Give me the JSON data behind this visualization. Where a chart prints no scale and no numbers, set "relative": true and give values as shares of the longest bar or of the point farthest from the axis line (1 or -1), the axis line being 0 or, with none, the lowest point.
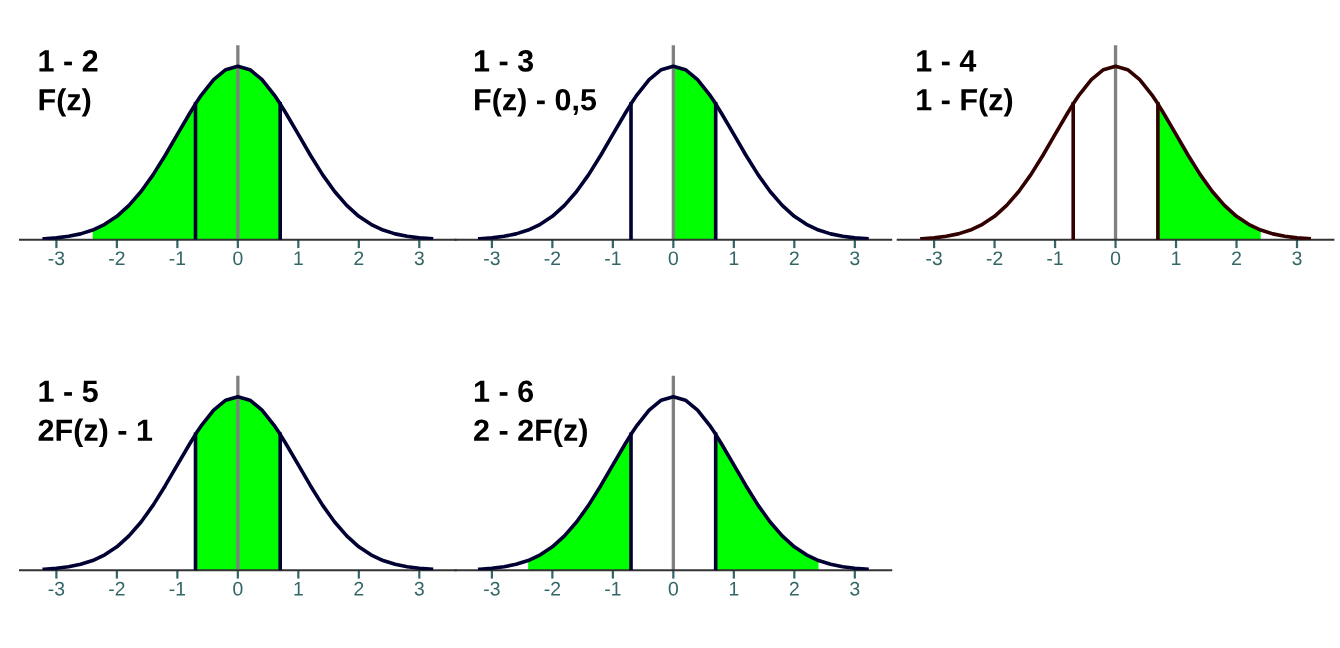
{
  "chart_data": [
    {
      "type": "line",
      "title": "1 - 2",
      "subtitle": "F(z)",
      "relative": true,
      "xlim": [
        -3.6,
        3.6
      ],
      "xticks": [
        -3,
        -2,
        -1,
        0,
        1,
        2,
        3
      ],
      "grid": false,
      "legend": false,
      "ref_lines": [
        {
          "axis": "x",
          "value": 0,
          "color": "#808080"
        }
      ],
      "series": [
        {
          "type": "area",
          "color": "#00ff00",
          "x": [
            -2.4,
            -2.2,
            -2.0,
            -1.8,
            -1.6,
            -1.4,
            -1.2,
            -1.0,
            -0.8,
            -0.7,
            -0.6,
            -0.4,
            -0.2,
            0,
            0.2,
            0.4,
            0.6,
            0.7
          ],
          "values": [
            0.056,
            0.089,
            0.135,
            0.198,
            0.278,
            0.375,
            0.487,
            0.607,
            0.726,
            0.783,
            0.835,
            0.923,
            0.98,
            1,
            0.98,
            0.923,
            0.835,
            0.783
          ]
        },
        {
          "type": "line",
          "color": "#000033",
          "x": [
            -3.2,
            -3.0,
            -2.8,
            -2.6,
            -2.4,
            -2.2,
            -2.0,
            -1.8,
            -1.6,
            -1.4,
            -1.2,
            -1.0,
            -0.8,
            -0.7,
            -0.6,
            -0.4,
            -0.2,
            0,
            0.2,
            0.4,
            0.6,
            0.7,
            0.8,
            1.0,
            1.2,
            1.4,
            1.6,
            1.8,
            2.0,
            2.2,
            2.4,
            2.6,
            2.8,
            3.0,
            3.2
          ],
          "values": [
            0.006,
            0.011,
            0.02,
            0.034,
            0.056,
            0.089,
            0.135,
            0.198,
            0.278,
            0.375,
            0.487,
            0.607,
            0.726,
            0.783,
            0.835,
            0.923,
            0.98,
            1,
            0.98,
            0.923,
            0.835,
            0.783,
            0.726,
            0.607,
            0.487,
            0.375,
            0.278,
            0.198,
            0.135,
            0.089,
            0.056,
            0.034,
            0.02,
            0.011,
            0.006
          ]
        },
        {
          "type": "line",
          "color": "#000033",
          "x": [
            -0.7,
            -0.7
          ],
          "values": [
            0,
            0.783
          ]
        },
        {
          "type": "line",
          "color": "#000033",
          "x": [
            0.7,
            0.7
          ],
          "values": [
            0,
            0.783
          ]
        }
      ]
    },
    {
      "type": "line",
      "title": "1 - 3",
      "subtitle": "F(z) - 0,5",
      "relative": true,
      "xlim": [
        -3.6,
        3.6
      ],
      "xticks": [
        -3,
        -2,
        -1,
        0,
        1,
        2,
        3
      ],
      "grid": false,
      "legend": false,
      "ref_lines": [
        {
          "axis": "x",
          "value": 0,
          "color": "#808080"
        }
      ],
      "series": [
        {
          "type": "area",
          "color": "#00ff00",
          "x": [
            0,
            0.2,
            0.4,
            0.6,
            0.7
          ],
          "values": [
            1,
            0.98,
            0.923,
            0.835,
            0.783
          ]
        },
        {
          "type": "line",
          "color": "#000033",
          "x": [
            -3.2,
            -3.0,
            -2.8,
            -2.6,
            -2.4,
            -2.2,
            -2.0,
            -1.8,
            -1.6,
            -1.4,
            -1.2,
            -1.0,
            -0.8,
            -0.7,
            -0.6,
            -0.4,
            -0.2,
            0,
            0.2,
            0.4,
            0.6,
            0.7,
            0.8,
            1.0,
            1.2,
            1.4,
            1.6,
            1.8,
            2.0,
            2.2,
            2.4,
            2.6,
            2.8,
            3.0,
            3.2
          ],
          "values": [
            0.006,
            0.011,
            0.02,
            0.034,
            0.056,
            0.089,
            0.135,
            0.198,
            0.278,
            0.375,
            0.487,
            0.607,
            0.726,
            0.783,
            0.835,
            0.923,
            0.98,
            1,
            0.98,
            0.923,
            0.835,
            0.783,
            0.726,
            0.607,
            0.487,
            0.375,
            0.278,
            0.198,
            0.135,
            0.089,
            0.056,
            0.034,
            0.02,
            0.011,
            0.006
          ]
        },
        {
          "type": "line",
          "color": "#000033",
          "x": [
            -0.7,
            -0.7
          ],
          "values": [
            0,
            0.783
          ]
        },
        {
          "type": "line",
          "color": "#000033",
          "x": [
            0.7,
            0.7
          ],
          "values": [
            0,
            0.783
          ]
        }
      ]
    },
    {
      "type": "line",
      "title": "1 - 4",
      "subtitle": "1 - F(z)",
      "relative": true,
      "xlim": [
        -3.6,
        3.6
      ],
      "xticks": [
        -3,
        -2,
        -1,
        0,
        1,
        2,
        3
      ],
      "grid": false,
      "legend": false,
      "ref_lines": [
        {
          "axis": "x",
          "value": 0,
          "color": "#808080"
        }
      ],
      "series": [
        {
          "type": "area",
          "color": "#00ff00",
          "x": [
            0.7,
            0.8,
            1.0,
            1.2,
            1.4,
            1.6,
            1.8,
            2.0,
            2.2,
            2.4
          ],
          "values": [
            0.783,
            0.726,
            0.607,
            0.487,
            0.375,
            0.278,
            0.198,
            0.135,
            0.089,
            0.056
          ]
        },
        {
          "type": "line",
          "color": "#330000",
          "x": [
            -3.2,
            -3.0,
            -2.8,
            -2.6,
            -2.4,
            -2.2,
            -2.0,
            -1.8,
            -1.6,
            -1.4,
            -1.2,
            -1.0,
            -0.8,
            -0.7,
            -0.6,
            -0.4,
            -0.2,
            0,
            0.2,
            0.4,
            0.6,
            0.7,
            0.8,
            1.0,
            1.2,
            1.4,
            1.6,
            1.8,
            2.0,
            2.2,
            2.4,
            2.6,
            2.8,
            3.0,
            3.2
          ],
          "values": [
            0.006,
            0.011,
            0.02,
            0.034,
            0.056,
            0.089,
            0.135,
            0.198,
            0.278,
            0.375,
            0.487,
            0.607,
            0.726,
            0.783,
            0.835,
            0.923,
            0.98,
            1,
            0.98,
            0.923,
            0.835,
            0.783,
            0.726,
            0.607,
            0.487,
            0.375,
            0.278,
            0.198,
            0.135,
            0.089,
            0.056,
            0.034,
            0.02,
            0.011,
            0.006
          ]
        },
        {
          "type": "line",
          "color": "#330000",
          "x": [
            -0.7,
            -0.7
          ],
          "values": [
            0,
            0.783
          ]
        },
        {
          "type": "line",
          "color": "#330000",
          "x": [
            0.7,
            0.7
          ],
          "values": [
            0,
            0.783
          ]
        }
      ]
    },
    {
      "type": "line",
      "title": "1 - 5",
      "subtitle": "2F(z) - 1",
      "relative": true,
      "xlim": [
        -3.6,
        3.6
      ],
      "xticks": [
        -3,
        -2,
        -1,
        0,
        1,
        2,
        3
      ],
      "grid": false,
      "legend": false,
      "ref_lines": [
        {
          "axis": "x",
          "value": 0,
          "color": "#808080"
        }
      ],
      "series": [
        {
          "type": "area",
          "color": "#00ff00",
          "x": [
            -0.7,
            -0.6,
            -0.4,
            -0.2,
            0,
            0.2,
            0.4,
            0.6,
            0.7
          ],
          "values": [
            0.783,
            0.835,
            0.923,
            0.98,
            1,
            0.98,
            0.923,
            0.835,
            0.783
          ]
        },
        {
          "type": "line",
          "color": "#000033",
          "x": [
            -3.2,
            -3.0,
            -2.8,
            -2.6,
            -2.4,
            -2.2,
            -2.0,
            -1.8,
            -1.6,
            -1.4,
            -1.2,
            -1.0,
            -0.8,
            -0.7,
            -0.6,
            -0.4,
            -0.2,
            0,
            0.2,
            0.4,
            0.6,
            0.7,
            0.8,
            1.0,
            1.2,
            1.4,
            1.6,
            1.8,
            2.0,
            2.2,
            2.4,
            2.6,
            2.8,
            3.0,
            3.2
          ],
          "values": [
            0.006,
            0.011,
            0.02,
            0.034,
            0.056,
            0.089,
            0.135,
            0.198,
            0.278,
            0.375,
            0.487,
            0.607,
            0.726,
            0.783,
            0.835,
            0.923,
            0.98,
            1,
            0.98,
            0.923,
            0.835,
            0.783,
            0.726,
            0.607,
            0.487,
            0.375,
            0.278,
            0.198,
            0.135,
            0.089,
            0.056,
            0.034,
            0.02,
            0.011,
            0.006
          ]
        },
        {
          "type": "line",
          "color": "#000033",
          "x": [
            -0.7,
            -0.7
          ],
          "values": [
            0,
            0.783
          ]
        },
        {
          "type": "line",
          "color": "#000033",
          "x": [
            0.7,
            0.7
          ],
          "values": [
            0,
            0.783
          ]
        }
      ]
    },
    {
      "type": "line",
      "title": "1 - 6",
      "subtitle": "2 - 2F(z)",
      "relative": true,
      "xlim": [
        -3.6,
        3.6
      ],
      "xticks": [
        -3,
        -2,
        -1,
        0,
        1,
        2,
        3
      ],
      "grid": false,
      "legend": false,
      "ref_lines": [
        {
          "axis": "x",
          "value": 0,
          "color": "#808080"
        }
      ],
      "series": [
        {
          "type": "area",
          "color": "#00ff00",
          "x": [
            -2.4,
            -2.2,
            -2.0,
            -1.8,
            -1.6,
            -1.4,
            -1.2,
            -1.0,
            -0.8,
            -0.7
          ],
          "values": [
            0.056,
            0.089,
            0.135,
            0.198,
            0.278,
            0.375,
            0.487,
            0.607,
            0.726,
            0.783
          ]
        },
        {
          "type": "area",
          "color": "#00ff00",
          "x": [
            0.7,
            0.8,
            1.0,
            1.2,
            1.4,
            1.6,
            1.8,
            2.0,
            2.2,
            2.4
          ],
          "values": [
            0.783,
            0.726,
            0.607,
            0.487,
            0.375,
            0.278,
            0.198,
            0.135,
            0.089,
            0.056
          ]
        },
        {
          "type": "line",
          "color": "#000033",
          "x": [
            -3.2,
            -3.0,
            -2.8,
            -2.6,
            -2.4,
            -2.2,
            -2.0,
            -1.8,
            -1.6,
            -1.4,
            -1.2,
            -1.0,
            -0.8,
            -0.7,
            -0.6,
            -0.4,
            -0.2,
            0,
            0.2,
            0.4,
            0.6,
            0.7,
            0.8,
            1.0,
            1.2,
            1.4,
            1.6,
            1.8,
            2.0,
            2.2,
            2.4,
            2.6,
            2.8,
            3.0,
            3.2
          ],
          "values": [
            0.006,
            0.011,
            0.02,
            0.034,
            0.056,
            0.089,
            0.135,
            0.198,
            0.278,
            0.375,
            0.487,
            0.607,
            0.726,
            0.783,
            0.835,
            0.923,
            0.98,
            1,
            0.98,
            0.923,
            0.835,
            0.783,
            0.726,
            0.607,
            0.487,
            0.375,
            0.278,
            0.198,
            0.135,
            0.089,
            0.056,
            0.034,
            0.02,
            0.011,
            0.006
          ]
        },
        {
          "type": "line",
          "color": "#000033",
          "x": [
            -0.7,
            -0.7
          ],
          "values": [
            0,
            0.783
          ]
        },
        {
          "type": "line",
          "color": "#000033",
          "x": [
            0.7,
            0.7
          ],
          "values": [
            0,
            0.783
          ]
        }
      ]
    }
  ]
}
